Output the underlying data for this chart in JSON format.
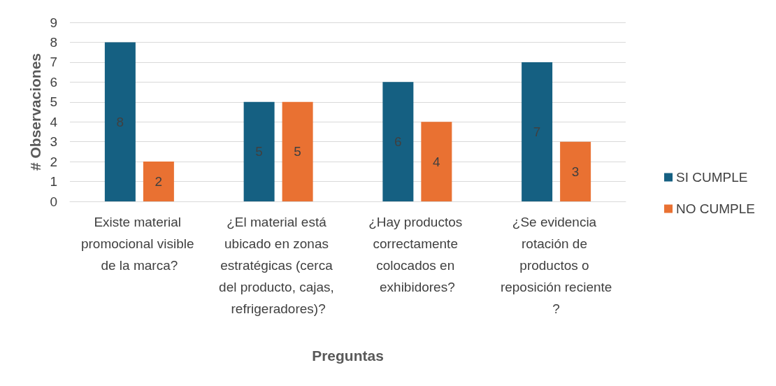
{
  "chart_data": {
    "type": "bar",
    "xlabel": "Preguntas",
    "ylabel": "# Observaciones",
    "categories": [
      "Existe material promocional visible de la marca?",
      "¿El material está ubicado en zonas estratégicas (cerca del producto, cajas, refrigeradores)?",
      "¿Hay productos correctamente colocados en exhibidores?",
      "¿Se evidencia rotación de productos o reposición reciente?"
    ],
    "series": [
      {
        "name": "SI CUMPLE",
        "color": "#156082",
        "values": [
          8,
          5,
          6,
          7
        ]
      },
      {
        "name": "NO CUMPLE",
        "color": "#e97132",
        "values": [
          2,
          5,
          4,
          3
        ]
      }
    ],
    "ylim": [
      0,
      9
    ],
    "yticks": [
      0,
      1,
      2,
      3,
      4,
      5,
      6,
      7,
      8,
      9
    ],
    "grid": "y",
    "legend": "right",
    "data_labels": true
  }
}
